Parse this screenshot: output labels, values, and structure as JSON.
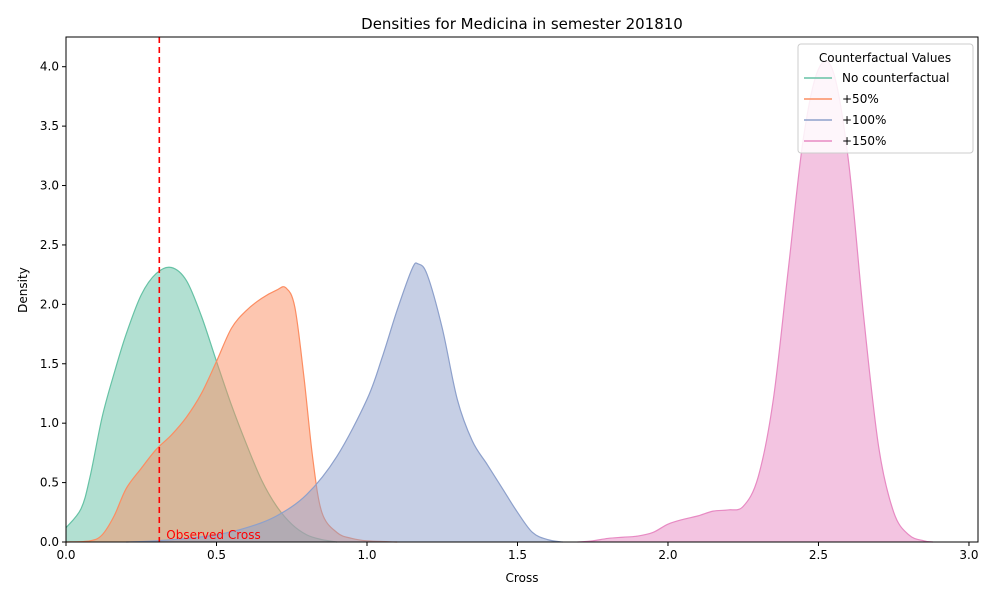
{
  "chart_data": {
    "type": "area",
    "title": "Densities for Medicina in semester 201810",
    "xlabel": "Cross",
    "ylabel": "Density",
    "xlim": [
      0.0,
      3.03
    ],
    "ylim": [
      0.0,
      4.25
    ],
    "xticks": [
      "0.0",
      "0.5",
      "1.0",
      "1.5",
      "2.0",
      "2.5",
      "3.0"
    ],
    "yticks": [
      "0.0",
      "0.5",
      "1.0",
      "1.5",
      "2.0",
      "2.5",
      "3.0",
      "3.5",
      "4.0"
    ],
    "grid": false,
    "legend": {
      "title": "Counterfactual Values",
      "position": "top-right"
    },
    "reference_line": {
      "x": 0.31,
      "label": "Observed Cross",
      "color": "#ff0000",
      "style": "dashed"
    },
    "series": [
      {
        "name": "No counterfactual",
        "color": "#66c2a5",
        "points": [
          [
            0.0,
            0.12
          ],
          [
            0.05,
            0.28
          ],
          [
            0.08,
            0.55
          ],
          [
            0.12,
            1.05
          ],
          [
            0.16,
            1.42
          ],
          [
            0.2,
            1.75
          ],
          [
            0.25,
            2.08
          ],
          [
            0.3,
            2.26
          ],
          [
            0.35,
            2.31
          ],
          [
            0.4,
            2.2
          ],
          [
            0.45,
            1.9
          ],
          [
            0.5,
            1.52
          ],
          [
            0.55,
            1.15
          ],
          [
            0.6,
            0.82
          ],
          [
            0.65,
            0.52
          ],
          [
            0.7,
            0.3
          ],
          [
            0.75,
            0.15
          ],
          [
            0.8,
            0.06
          ],
          [
            0.85,
            0.02
          ],
          [
            0.9,
            0.0
          ]
        ]
      },
      {
        "name": "+50%",
        "color": "#fc8d62",
        "points": [
          [
            0.0,
            0.0
          ],
          [
            0.08,
            0.01
          ],
          [
            0.12,
            0.06
          ],
          [
            0.16,
            0.22
          ],
          [
            0.2,
            0.45
          ],
          [
            0.25,
            0.62
          ],
          [
            0.3,
            0.78
          ],
          [
            0.35,
            0.9
          ],
          [
            0.4,
            1.05
          ],
          [
            0.45,
            1.25
          ],
          [
            0.5,
            1.52
          ],
          [
            0.55,
            1.8
          ],
          [
            0.6,
            1.95
          ],
          [
            0.65,
            2.05
          ],
          [
            0.7,
            2.12
          ],
          [
            0.73,
            2.14
          ],
          [
            0.76,
            1.98
          ],
          [
            0.79,
            1.4
          ],
          [
            0.82,
            0.7
          ],
          [
            0.85,
            0.25
          ],
          [
            0.9,
            0.08
          ],
          [
            0.95,
            0.03
          ],
          [
            1.0,
            0.01
          ],
          [
            1.1,
            0.0
          ]
        ]
      },
      {
        "name": "+100%",
        "color": "#8da0cb",
        "points": [
          [
            0.2,
            0.0
          ],
          [
            0.3,
            0.01
          ],
          [
            0.4,
            0.03
          ],
          [
            0.5,
            0.06
          ],
          [
            0.6,
            0.12
          ],
          [
            0.7,
            0.22
          ],
          [
            0.8,
            0.4
          ],
          [
            0.9,
            0.72
          ],
          [
            1.0,
            1.2
          ],
          [
            1.05,
            1.55
          ],
          [
            1.1,
            1.95
          ],
          [
            1.15,
            2.3
          ],
          [
            1.17,
            2.34
          ],
          [
            1.2,
            2.25
          ],
          [
            1.25,
            1.8
          ],
          [
            1.3,
            1.2
          ],
          [
            1.35,
            0.85
          ],
          [
            1.4,
            0.65
          ],
          [
            1.45,
            0.45
          ],
          [
            1.5,
            0.25
          ],
          [
            1.55,
            0.08
          ],
          [
            1.6,
            0.02
          ],
          [
            1.65,
            0.0
          ]
        ]
      },
      {
        "name": "+150%",
        "color": "#e78ac3",
        "points": [
          [
            1.7,
            0.0
          ],
          [
            1.75,
            0.01
          ],
          [
            1.8,
            0.03
          ],
          [
            1.85,
            0.04
          ],
          [
            1.9,
            0.05
          ],
          [
            1.95,
            0.08
          ],
          [
            2.0,
            0.15
          ],
          [
            2.05,
            0.19
          ],
          [
            2.1,
            0.22
          ],
          [
            2.15,
            0.26
          ],
          [
            2.2,
            0.27
          ],
          [
            2.25,
            0.3
          ],
          [
            2.3,
            0.55
          ],
          [
            2.35,
            1.2
          ],
          [
            2.4,
            2.3
          ],
          [
            2.45,
            3.4
          ],
          [
            2.5,
            3.98
          ],
          [
            2.55,
            3.95
          ],
          [
            2.6,
            3.2
          ],
          [
            2.65,
            1.9
          ],
          [
            2.7,
            0.8
          ],
          [
            2.75,
            0.25
          ],
          [
            2.8,
            0.06
          ],
          [
            2.85,
            0.01
          ],
          [
            2.88,
            0.0
          ]
        ]
      }
    ]
  }
}
